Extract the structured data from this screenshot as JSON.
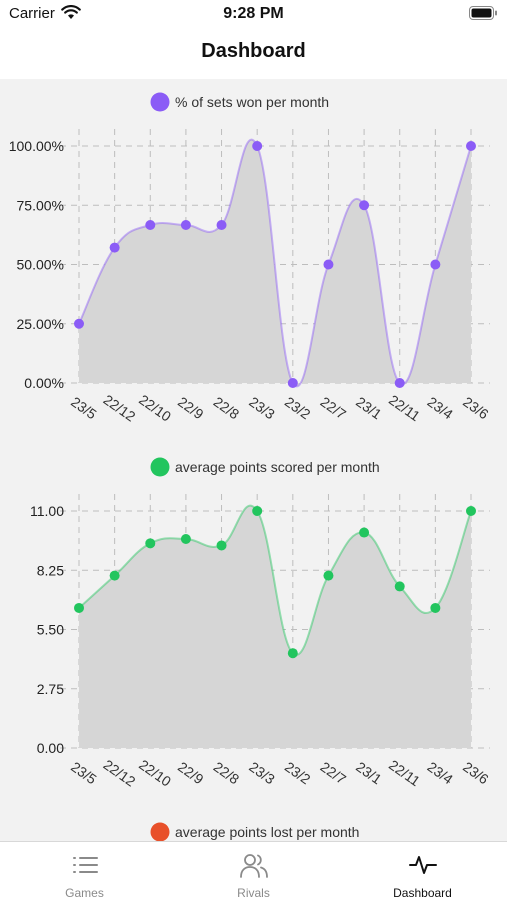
{
  "status_bar": {
    "carrier": "Carrier",
    "time": "9:28 PM"
  },
  "header": {
    "title": "Dashboard"
  },
  "tabs": [
    {
      "label": "Games",
      "icon": "list-icon",
      "active": false
    },
    {
      "label": "Rivals",
      "icon": "users-icon",
      "active": false
    },
    {
      "label": "Dashboard",
      "icon": "activity-icon",
      "active": true
    }
  ],
  "chart_data": [
    {
      "type": "area",
      "title": "% of sets won per month",
      "color": "#8b5cf6",
      "categories": [
        "23/5",
        "22/12",
        "22/10",
        "22/9",
        "22/8",
        "23/3",
        "23/2",
        "22/7",
        "23/1",
        "22/11",
        "23/4",
        "23/6"
      ],
      "values": [
        25,
        57.14,
        66.67,
        66.67,
        66.67,
        100,
        0,
        50,
        75,
        0,
        50,
        100
      ],
      "ylim": [
        0,
        100
      ],
      "yticks": [
        "0.00%",
        "25.00%",
        "50.00%",
        "75.00%",
        "100.00%"
      ],
      "grid": true,
      "legend": "top"
    },
    {
      "type": "area",
      "title": "average points scored per month",
      "color": "#22c55e",
      "categories": [
        "23/5",
        "22/12",
        "22/10",
        "22/9",
        "22/8",
        "23/3",
        "23/2",
        "22/7",
        "23/1",
        "22/11",
        "23/4",
        "23/6"
      ],
      "values": [
        6.5,
        8,
        9.5,
        9.7,
        9.4,
        11,
        4.4,
        8,
        10,
        7.5,
        6.5,
        11
      ],
      "ylim": [
        0,
        11
      ],
      "yticks": [
        "0.00",
        "2.75",
        "5.50",
        "8.25",
        "11.00"
      ],
      "grid": true,
      "legend": "top"
    },
    {
      "type": "area",
      "title": "average points lost per month",
      "color": "#e8502a",
      "legend": "top"
    }
  ]
}
